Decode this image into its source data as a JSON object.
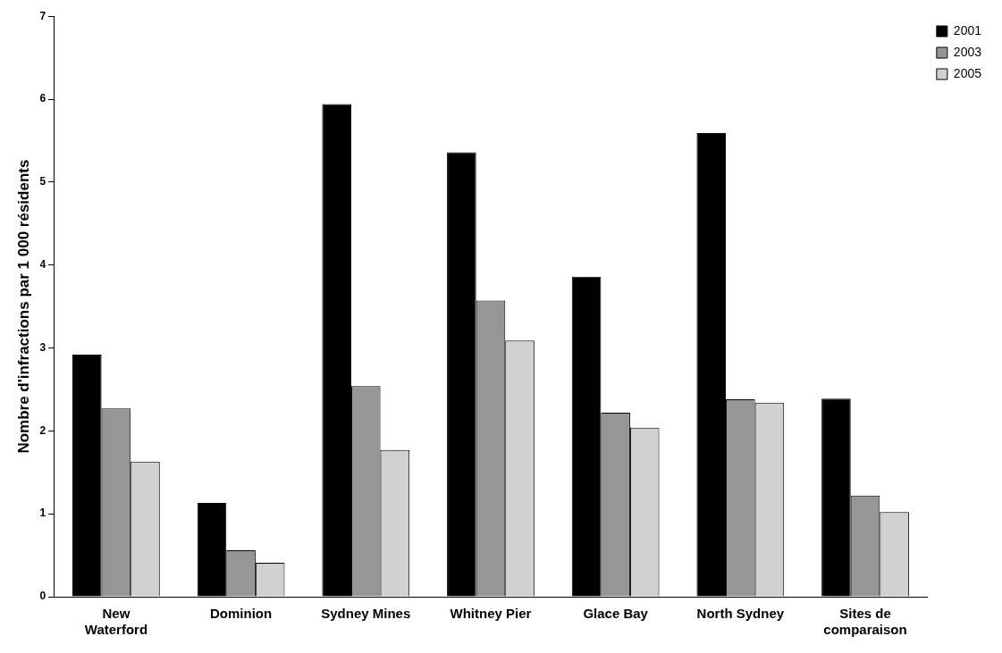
{
  "chart_data": {
    "type": "bar",
    "ylabel": "Nombre d'infractions par 1 000 résidents",
    "categories": [
      "New Waterford",
      "Dominion",
      "Sydney Mines",
      "Whitney Pier",
      "Glace Bay",
      "North Sydney",
      "Sites de comparaison"
    ],
    "series": [
      {
        "name": "2001",
        "color": "#000000",
        "values": [
          2.92,
          1.13,
          5.94,
          5.36,
          3.86,
          5.59,
          2.39
        ]
      },
      {
        "name": "2003",
        "color": "#969696",
        "values": [
          2.27,
          0.56,
          2.54,
          3.57,
          2.22,
          2.38,
          1.22
        ]
      },
      {
        "name": "2005",
        "color": "#d0d0d0",
        "values": [
          1.63,
          0.41,
          1.77,
          3.09,
          2.04,
          2.34,
          1.02
        ]
      }
    ],
    "ylim": [
      0,
      7
    ],
    "yticks": [
      0,
      1,
      2,
      3,
      4,
      5,
      6,
      7
    ],
    "grid": false,
    "legend": "top right"
  }
}
